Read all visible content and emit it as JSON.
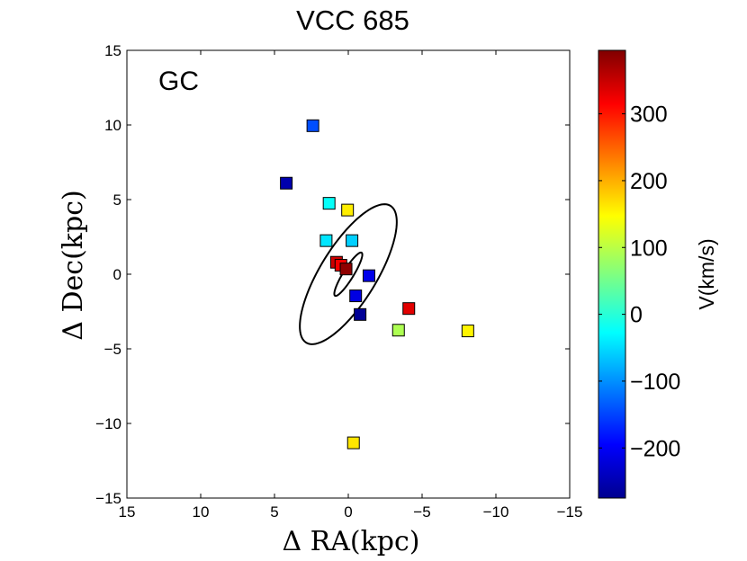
{
  "chart_data": {
    "type": "scatter",
    "title": "VCC 685",
    "xlabel": "Δ RA(kpc)",
    "ylabel": "Δ Dec(kpc)",
    "xlim": [
      15,
      -15
    ],
    "ylim": [
      -15,
      15
    ],
    "xticks": [
      15,
      10,
      5,
      0,
      -5,
      -10,
      -15
    ],
    "xtick_labels": [
      "15",
      "10",
      "5",
      "0",
      "−5",
      "−10",
      "−15"
    ],
    "yticks": [
      15,
      10,
      5,
      0,
      -5,
      -10,
      -15
    ],
    "ytick_labels": [
      "15",
      "10",
      "5",
      "0",
      "−5",
      "−10",
      "−15"
    ],
    "annotation": "GC",
    "grid": false,
    "colorbar": {
      "label": "V(km/s)",
      "range": [
        -275,
        395
      ],
      "ticks": [
        300,
        200,
        100,
        0,
        -100,
        -200
      ],
      "tick_labels": [
        "300",
        "200",
        "100",
        "0",
        "−100",
        "−200"
      ],
      "colormap": "jet"
    },
    "points": [
      {
        "x": 2.4,
        "y": 9.95,
        "v": -140
      },
      {
        "x": 4.2,
        "y": 6.1,
        "v": -245
      },
      {
        "x": 1.3,
        "y": 4.75,
        "v": -20
      },
      {
        "x": 0.05,
        "y": 4.3,
        "v": 155
      },
      {
        "x": 1.5,
        "y": 2.25,
        "v": -40
      },
      {
        "x": -0.25,
        "y": 2.25,
        "v": -55
      },
      {
        "x": 0.8,
        "y": 0.8,
        "v": 345
      },
      {
        "x": 0.5,
        "y": 0.6,
        "v": 320
      },
      {
        "x": 0.15,
        "y": 0.35,
        "v": 385
      },
      {
        "x": -1.4,
        "y": -0.1,
        "v": -205
      },
      {
        "x": -0.5,
        "y": -1.45,
        "v": -210
      },
      {
        "x": -0.8,
        "y": -2.7,
        "v": -260
      },
      {
        "x": -4.1,
        "y": -2.3,
        "v": 330
      },
      {
        "x": -3.4,
        "y": -3.75,
        "v": 90
      },
      {
        "x": -8.1,
        "y": -3.8,
        "v": 150
      },
      {
        "x": -0.35,
        "y": -11.3,
        "v": 160
      }
    ],
    "ellipses": [
      {
        "cx": 0.0,
        "cy": 0.0,
        "semi_major": 5.4,
        "semi_minor": 1.9,
        "angle_deg": 122
      },
      {
        "cx": 0.0,
        "cy": 0.0,
        "semi_major": 1.7,
        "semi_minor": 0.35,
        "angle_deg": 122
      }
    ]
  }
}
